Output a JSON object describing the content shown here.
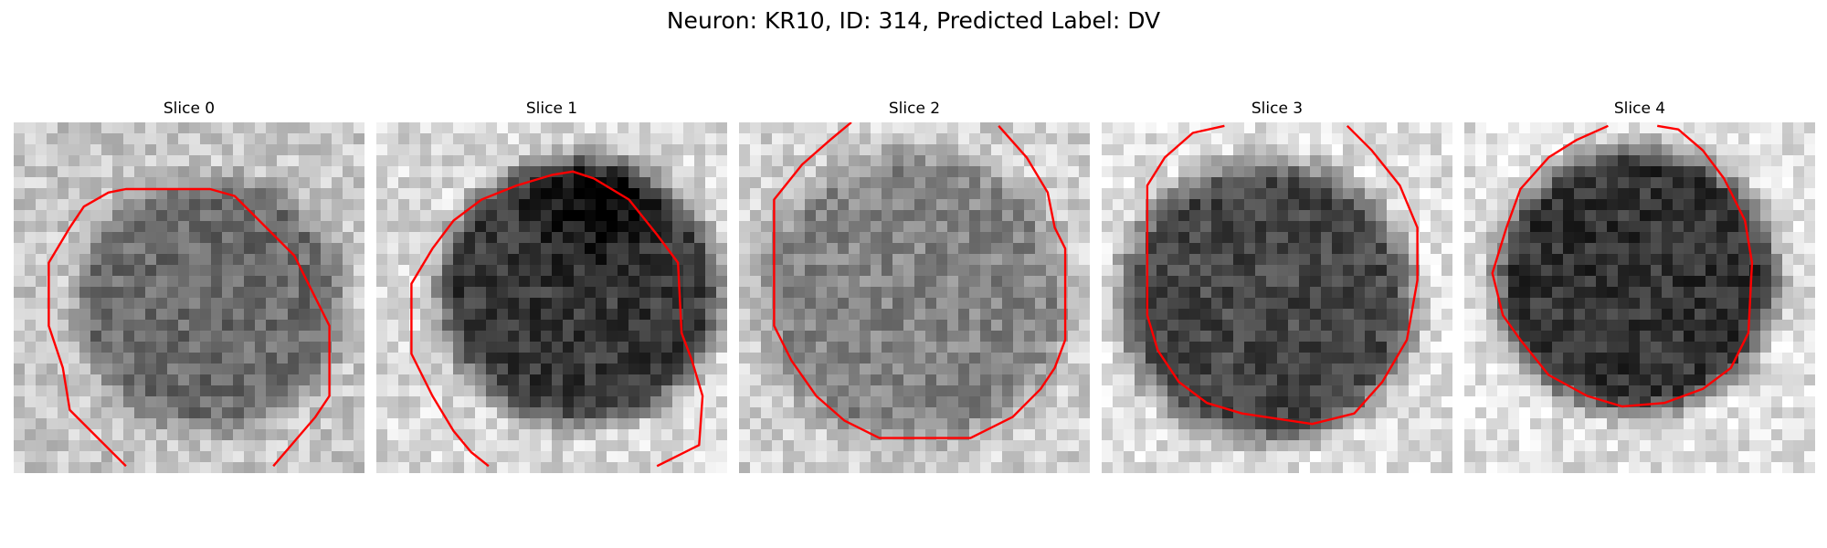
{
  "figure": {
    "title": "Neuron: KR10, ID: 314, Predicted Label: DV",
    "contour_color": "#ff0000"
  },
  "panels": [
    {
      "title": "Slice 0"
    },
    {
      "title": "Slice 1"
    },
    {
      "title": "Slice 2"
    },
    {
      "title": "Slice 3"
    },
    {
      "title": "Slice 4"
    }
  ]
}
